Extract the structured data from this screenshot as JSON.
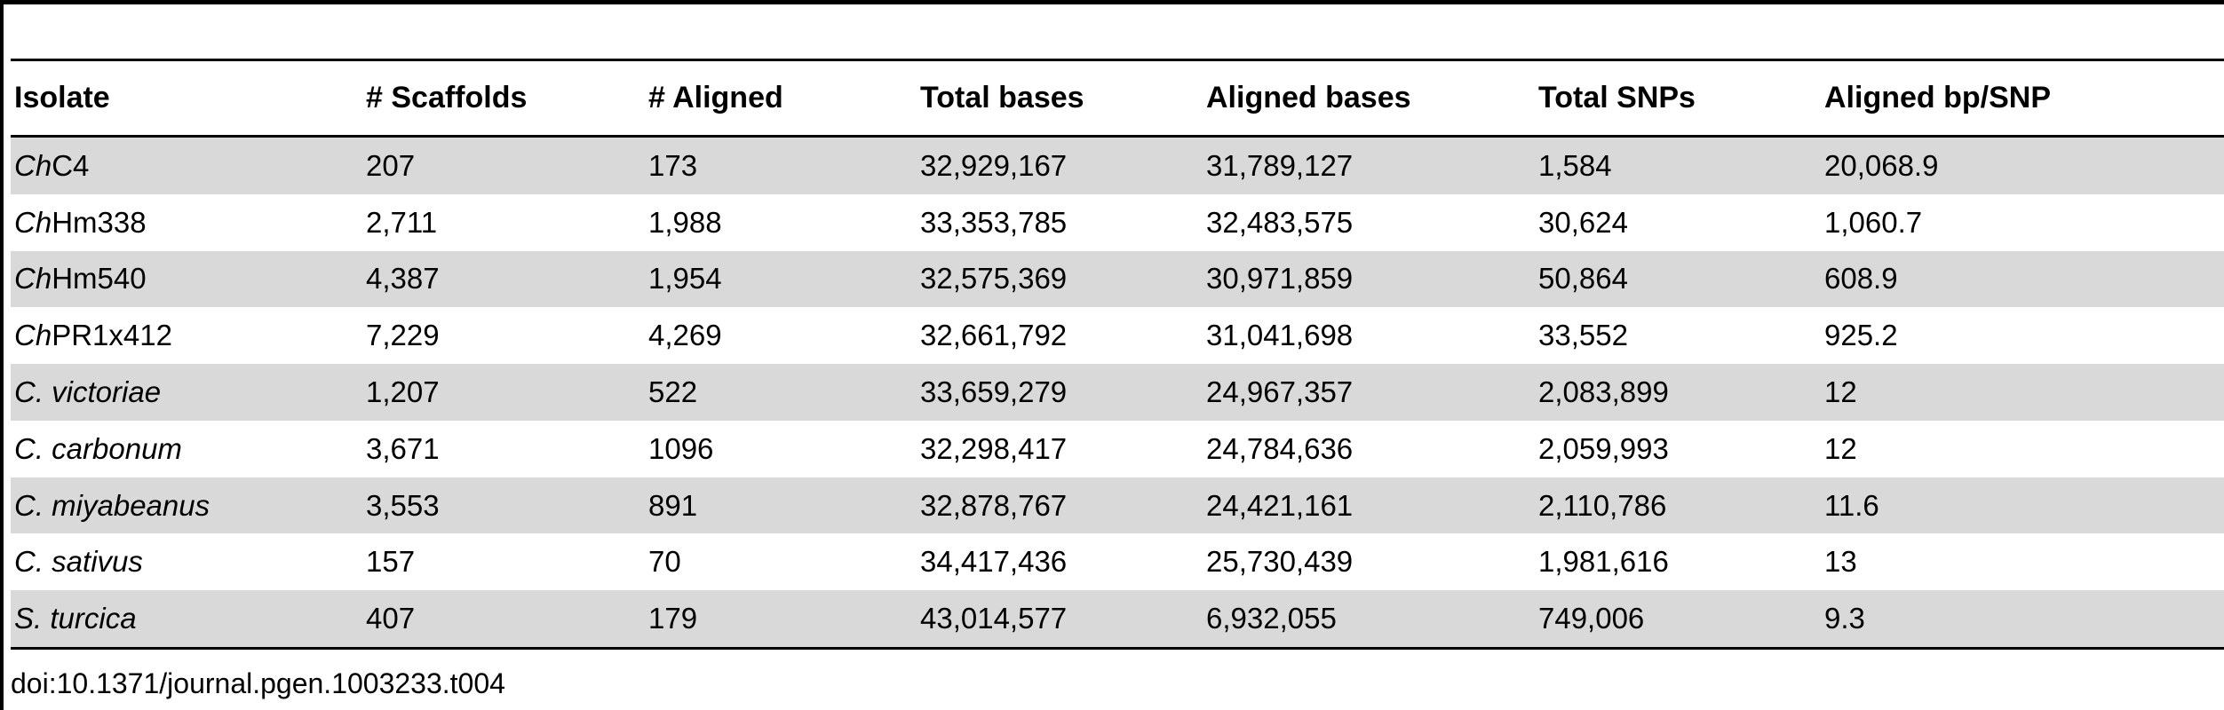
{
  "table": {
    "headers": [
      "Isolate",
      "# Scaffolds",
      "# Aligned",
      "Total bases",
      "Aligned bases",
      "Total SNPs",
      "Aligned bp/SNP"
    ],
    "rows": [
      {
        "isolate_prefix": "Ch",
        "isolate_rest": "C4",
        "scaffolds": "207",
        "aligned": "173",
        "total_bases": "32,929,167",
        "aligned_bases": "31,789,127",
        "total_snps": "1,584",
        "bp_per_snp": "20,068.9"
      },
      {
        "isolate_prefix": "Ch",
        "isolate_rest": "Hm338",
        "scaffolds": "2,711",
        "aligned": "1,988",
        "total_bases": "33,353,785",
        "aligned_bases": "32,483,575",
        "total_snps": "30,624",
        "bp_per_snp": "1,060.7"
      },
      {
        "isolate_prefix": "Ch",
        "isolate_rest": "Hm540",
        "scaffolds": "4,387",
        "aligned": "1,954",
        "total_bases": "32,575,369",
        "aligned_bases": "30,971,859",
        "total_snps": "50,864",
        "bp_per_snp": "608.9"
      },
      {
        "isolate_prefix": "Ch",
        "isolate_rest": "PR1x412",
        "scaffolds": "7,229",
        "aligned": "4,269",
        "total_bases": "32,661,792",
        "aligned_bases": "31,041,698",
        "total_snps": "33,552",
        "bp_per_snp": "925.2"
      },
      {
        "isolate_prefix": "C. victoriae",
        "isolate_rest": "",
        "scaffolds": "1,207",
        "aligned": "522",
        "total_bases": "33,659,279",
        "aligned_bases": "24,967,357",
        "total_snps": "2,083,899",
        "bp_per_snp": "12"
      },
      {
        "isolate_prefix": "C. carbonum",
        "isolate_rest": "",
        "scaffolds": "3,671",
        "aligned": "1096",
        "total_bases": "32,298,417",
        "aligned_bases": "24,784,636",
        "total_snps": "2,059,993",
        "bp_per_snp": "12"
      },
      {
        "isolate_prefix": "C. miyabeanus",
        "isolate_rest": "",
        "scaffolds": "3,553",
        "aligned": "891",
        "total_bases": "32,878,767",
        "aligned_bases": "24,421,161",
        "total_snps": "2,110,786",
        "bp_per_snp": "11.6"
      },
      {
        "isolate_prefix": "C. sativus",
        "isolate_rest": "",
        "scaffolds": "157",
        "aligned": "70",
        "total_bases": "34,417,436",
        "aligned_bases": "25,730,439",
        "total_snps": "1,981,616",
        "bp_per_snp": "13"
      },
      {
        "isolate_prefix": "S. turcica",
        "isolate_rest": "",
        "scaffolds": "407",
        "aligned": "179",
        "total_bases": "43,014,577",
        "aligned_bases": "6,932,055",
        "total_snps": "749,006",
        "bp_per_snp": "9.3"
      }
    ]
  },
  "footer": {
    "doi": "doi:10.1371/journal.pgen.1003233.t004"
  }
}
